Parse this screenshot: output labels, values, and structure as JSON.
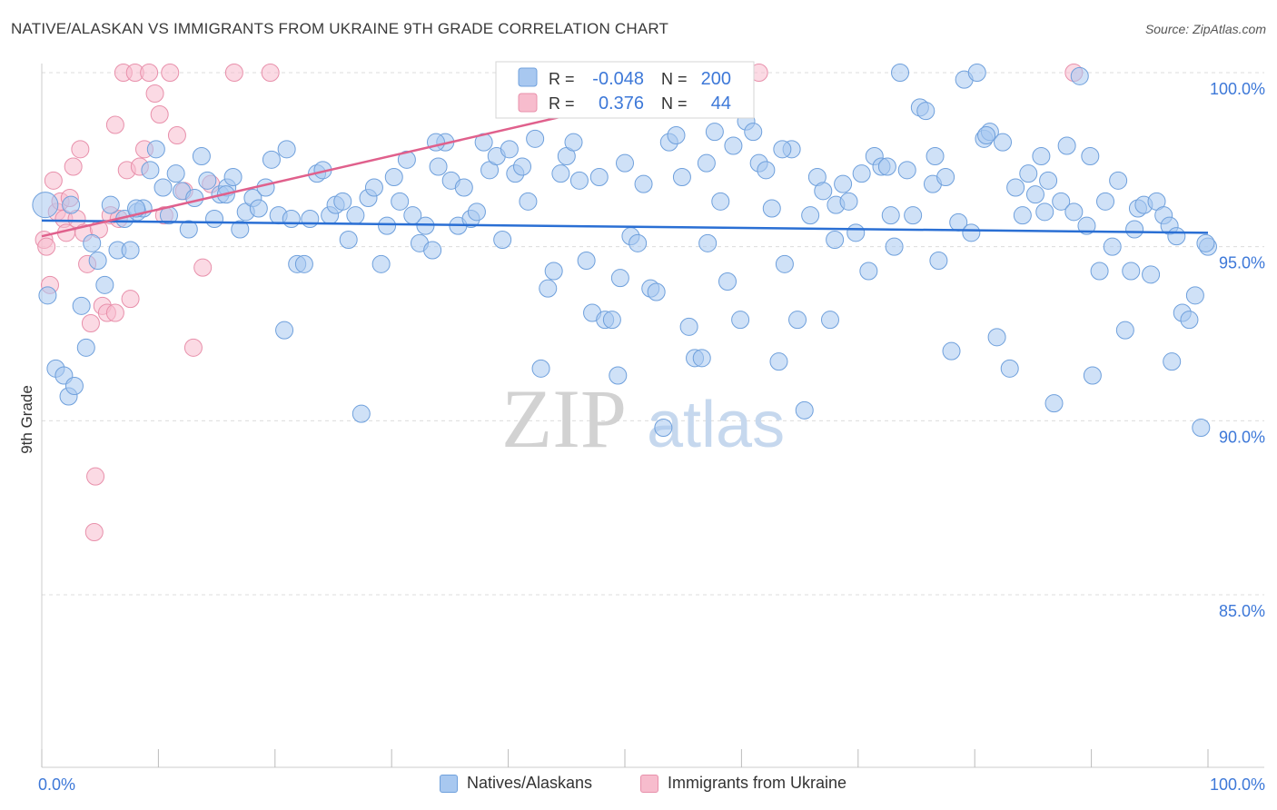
{
  "title": "NATIVE/ALASKAN VS IMMIGRANTS FROM UKRAINE 9TH GRADE CORRELATION CHART",
  "source": "Source: ZipAtlas.com",
  "watermark": {
    "zip": "ZIP",
    "atlas": "atlas"
  },
  "colors": {
    "blue_fill": "#a8c8f0",
    "blue_stroke": "#6fa0dc",
    "blue_line": "#2a6fd4",
    "pink_fill": "#f7bccd",
    "pink_stroke": "#e890ab",
    "pink_line": "#e0608c",
    "value_text": "#3d78d8",
    "grid": "#dcdcdc"
  },
  "legend_top": {
    "rows": [
      {
        "r_label": "R =",
        "r_value": "-0.048",
        "n_label": "N =",
        "n_value": "200"
      },
      {
        "r_label": "R =",
        "r_value": "0.376",
        "n_label": "N =",
        "n_value": "44"
      }
    ]
  },
  "legend_bottom": [
    "Natives/Alaskans",
    "Immigrants from Ukraine"
  ],
  "chart_data": {
    "type": "scatter",
    "title": "NATIVE/ALASKAN VS IMMIGRANTS FROM UKRAINE 9TH GRADE CORRELATION CHART",
    "xlabel": "",
    "ylabel": "9th Grade",
    "xlim": [
      0,
      100
    ],
    "ylim": [
      80.5,
      100.5
    ],
    "x_tick_labels": [
      "0.0%",
      "100.0%"
    ],
    "y_ticks": [
      85,
      90,
      95,
      100
    ],
    "y_tick_labels": [
      "85.0%",
      "90.0%",
      "95.0%",
      "100.0%"
    ],
    "grid": true,
    "legend_position": "top-center",
    "series": [
      {
        "name": "Natives/Alaskans",
        "color": "blue",
        "R": -0.048,
        "N": 200,
        "trend": {
          "x0": 0,
          "y0": 95.75,
          "x1": 100,
          "y1": 95.4
        },
        "points": [
          [
            0.3,
            96.2
          ],
          [
            0.5,
            93.6
          ],
          [
            1.2,
            91.5
          ],
          [
            1.9,
            91.3
          ],
          [
            2.3,
            90.7
          ],
          [
            2.8,
            91.0
          ],
          [
            3.4,
            93.3
          ],
          [
            3.8,
            92.1
          ],
          [
            4.3,
            95.1
          ],
          [
            4.8,
            94.6
          ],
          [
            5.4,
            93.9
          ],
          [
            5.9,
            96.2
          ],
          [
            6.5,
            94.9
          ],
          [
            7.1,
            95.8
          ],
          [
            7.6,
            94.9
          ],
          [
            8.2,
            96.0
          ],
          [
            8.7,
            96.1
          ],
          [
            9.3,
            97.2
          ],
          [
            9.8,
            97.8
          ],
          [
            10.4,
            96.7
          ],
          [
            10.9,
            95.9
          ],
          [
            11.5,
            97.1
          ],
          [
            12.0,
            96.6
          ],
          [
            12.6,
            95.5
          ],
          [
            13.1,
            96.4
          ],
          [
            13.7,
            97.6
          ],
          [
            14.2,
            96.9
          ],
          [
            14.8,
            95.8
          ],
          [
            15.3,
            96.5
          ],
          [
            15.9,
            96.7
          ],
          [
            16.4,
            97.0
          ],
          [
            17.0,
            95.5
          ],
          [
            17.5,
            96.0
          ],
          [
            18.1,
            96.4
          ],
          [
            18.6,
            96.1
          ],
          [
            19.2,
            96.7
          ],
          [
            19.7,
            97.5
          ],
          [
            20.3,
            95.9
          ],
          [
            20.8,
            92.6
          ],
          [
            21.4,
            95.8
          ],
          [
            21.9,
            94.5
          ],
          [
            22.5,
            94.5
          ],
          [
            23.0,
            95.8
          ],
          [
            23.6,
            97.1
          ],
          [
            24.1,
            97.2
          ],
          [
            24.7,
            95.9
          ],
          [
            25.2,
            96.2
          ],
          [
            25.8,
            96.3
          ],
          [
            26.3,
            95.2
          ],
          [
            26.9,
            95.9
          ],
          [
            27.4,
            90.2
          ],
          [
            28.0,
            96.4
          ],
          [
            28.5,
            96.7
          ],
          [
            29.1,
            94.5
          ],
          [
            29.6,
            95.6
          ],
          [
            30.2,
            97.0
          ],
          [
            30.7,
            96.3
          ],
          [
            31.3,
            97.5
          ],
          [
            31.8,
            95.9
          ],
          [
            32.4,
            95.1
          ],
          [
            32.9,
            95.6
          ],
          [
            33.5,
            94.9
          ],
          [
            34.0,
            97.3
          ],
          [
            34.6,
            98.0
          ],
          [
            35.1,
            96.9
          ],
          [
            35.7,
            95.6
          ],
          [
            36.2,
            96.7
          ],
          [
            36.8,
            95.8
          ],
          [
            37.3,
            96.0
          ],
          [
            37.9,
            98.0
          ],
          [
            38.4,
            97.2
          ],
          [
            39.0,
            97.6
          ],
          [
            39.5,
            95.2
          ],
          [
            40.1,
            97.8
          ],
          [
            40.6,
            97.1
          ],
          [
            41.2,
            97.3
          ],
          [
            41.7,
            96.3
          ],
          [
            42.3,
            98.1
          ],
          [
            42.8,
            91.5
          ],
          [
            43.4,
            93.8
          ],
          [
            43.9,
            94.3
          ],
          [
            44.5,
            97.1
          ],
          [
            45.0,
            97.6
          ],
          [
            45.6,
            98.0
          ],
          [
            46.1,
            96.9
          ],
          [
            46.7,
            94.6
          ],
          [
            47.2,
            93.1
          ],
          [
            47.8,
            97.0
          ],
          [
            48.3,
            92.9
          ],
          [
            48.9,
            92.9
          ],
          [
            49.4,
            91.3
          ],
          [
            50.0,
            97.4
          ],
          [
            50.5,
            95.3
          ],
          [
            51.1,
            95.1
          ],
          [
            51.6,
            96.8
          ],
          [
            52.2,
            93.8
          ],
          [
            52.7,
            93.7
          ],
          [
            53.3,
            89.8
          ],
          [
            53.8,
            98.0
          ],
          [
            54.4,
            98.2
          ],
          [
            54.9,
            97.0
          ],
          [
            55.5,
            92.7
          ],
          [
            56.0,
            91.8
          ],
          [
            56.6,
            91.8
          ],
          [
            57.1,
            95.1
          ],
          [
            57.7,
            98.3
          ],
          [
            58.2,
            96.3
          ],
          [
            58.8,
            94.0
          ],
          [
            59.3,
            97.9
          ],
          [
            59.9,
            92.9
          ],
          [
            60.4,
            98.6
          ],
          [
            61.0,
            98.3
          ],
          [
            61.5,
            97.4
          ],
          [
            62.1,
            97.2
          ],
          [
            62.6,
            96.1
          ],
          [
            63.2,
            91.7
          ],
          [
            63.7,
            94.5
          ],
          [
            64.3,
            97.8
          ],
          [
            64.8,
            92.9
          ],
          [
            65.4,
            90.3
          ],
          [
            65.9,
            95.9
          ],
          [
            66.5,
            97.0
          ],
          [
            67.0,
            96.6
          ],
          [
            67.6,
            92.9
          ],
          [
            68.1,
            96.2
          ],
          [
            68.7,
            96.8
          ],
          [
            69.2,
            96.3
          ],
          [
            69.8,
            95.4
          ],
          [
            70.3,
            97.1
          ],
          [
            70.9,
            94.3
          ],
          [
            71.4,
            97.6
          ],
          [
            72.0,
            97.3
          ],
          [
            72.5,
            97.3
          ],
          [
            73.1,
            95.0
          ],
          [
            73.6,
            100.0
          ],
          [
            74.2,
            97.2
          ],
          [
            74.7,
            95.9
          ],
          [
            75.3,
            99.0
          ],
          [
            75.8,
            98.9
          ],
          [
            76.4,
            96.8
          ],
          [
            76.9,
            94.6
          ],
          [
            77.5,
            97.0
          ],
          [
            78.0,
            92.0
          ],
          [
            78.6,
            95.7
          ],
          [
            79.1,
            99.8
          ],
          [
            79.7,
            95.4
          ],
          [
            80.2,
            100.0
          ],
          [
            80.8,
            98.1
          ],
          [
            81.3,
            98.3
          ],
          [
            81.9,
            92.4
          ],
          [
            82.4,
            98.0
          ],
          [
            83.0,
            91.5
          ],
          [
            83.5,
            96.7
          ],
          [
            84.1,
            95.9
          ],
          [
            84.6,
            97.1
          ],
          [
            85.2,
            96.5
          ],
          [
            85.7,
            97.6
          ],
          [
            86.3,
            96.9
          ],
          [
            86.8,
            90.5
          ],
          [
            87.4,
            96.3
          ],
          [
            87.9,
            97.9
          ],
          [
            88.5,
            96.0
          ],
          [
            89.0,
            99.9
          ],
          [
            89.6,
            95.6
          ],
          [
            90.1,
            91.3
          ],
          [
            90.7,
            94.3
          ],
          [
            91.2,
            96.3
          ],
          [
            91.8,
            95.0
          ],
          [
            92.3,
            96.9
          ],
          [
            92.9,
            92.6
          ],
          [
            93.4,
            94.3
          ],
          [
            94.0,
            96.1
          ],
          [
            94.5,
            96.2
          ],
          [
            95.1,
            94.2
          ],
          [
            95.6,
            96.3
          ],
          [
            96.2,
            95.9
          ],
          [
            96.7,
            95.6
          ],
          [
            97.3,
            95.3
          ],
          [
            97.8,
            93.1
          ],
          [
            98.4,
            92.9
          ],
          [
            98.9,
            93.6
          ],
          [
            99.4,
            89.8
          ],
          [
            100.0,
            95.0
          ],
          [
            2.5,
            96.2
          ],
          [
            8.1,
            96.1
          ],
          [
            15.8,
            96.5
          ],
          [
            21.0,
            97.8
          ],
          [
            33.8,
            98.0
          ],
          [
            49.6,
            94.1
          ],
          [
            57.0,
            97.4
          ],
          [
            63.5,
            97.8
          ],
          [
            68.0,
            95.2
          ],
          [
            72.8,
            95.9
          ],
          [
            76.6,
            97.6
          ],
          [
            81.0,
            98.2
          ],
          [
            86.0,
            96.0
          ],
          [
            89.9,
            97.6
          ],
          [
            93.7,
            95.5
          ],
          [
            96.9,
            91.7
          ],
          [
            99.8,
            95.1
          ]
        ]
      },
      {
        "name": "Immigrants from Ukraine",
        "color": "pink",
        "R": 0.376,
        "N": 44,
        "trend": {
          "x0": 0,
          "y0": 95.3,
          "x1": 61,
          "y1": 100.0
        },
        "points": [
          [
            0.2,
            95.2
          ],
          [
            0.4,
            95.0
          ],
          [
            0.7,
            93.9
          ],
          [
            1.0,
            96.9
          ],
          [
            1.3,
            96.0
          ],
          [
            1.6,
            96.3
          ],
          [
            1.9,
            95.8
          ],
          [
            2.1,
            95.4
          ],
          [
            2.4,
            96.4
          ],
          [
            2.7,
            97.3
          ],
          [
            3.0,
            95.8
          ],
          [
            3.3,
            97.8
          ],
          [
            3.6,
            95.4
          ],
          [
            3.9,
            94.5
          ],
          [
            4.2,
            92.8
          ],
          [
            4.6,
            88.4
          ],
          [
            4.5,
            86.8
          ],
          [
            4.9,
            95.5
          ],
          [
            5.2,
            93.3
          ],
          [
            5.6,
            93.1
          ],
          [
            5.9,
            95.9
          ],
          [
            6.3,
            93.1
          ],
          [
            6.6,
            95.8
          ],
          [
            7.0,
            100.0
          ],
          [
            7.3,
            97.2
          ],
          [
            7.6,
            93.5
          ],
          [
            8.0,
            100.0
          ],
          [
            8.4,
            97.3
          ],
          [
            8.8,
            97.8
          ],
          [
            9.2,
            100.0
          ],
          [
            9.7,
            99.4
          ],
          [
            10.1,
            98.8
          ],
          [
            10.5,
            95.9
          ],
          [
            11.0,
            100.0
          ],
          [
            11.6,
            98.2
          ],
          [
            12.2,
            96.6
          ],
          [
            13.0,
            92.1
          ],
          [
            13.8,
            94.4
          ],
          [
            14.5,
            96.8
          ],
          [
            16.5,
            100.0
          ],
          [
            19.6,
            100.0
          ],
          [
            61.5,
            100.0
          ],
          [
            88.5,
            100.0
          ],
          [
            6.3,
            98.5
          ]
        ]
      }
    ]
  }
}
